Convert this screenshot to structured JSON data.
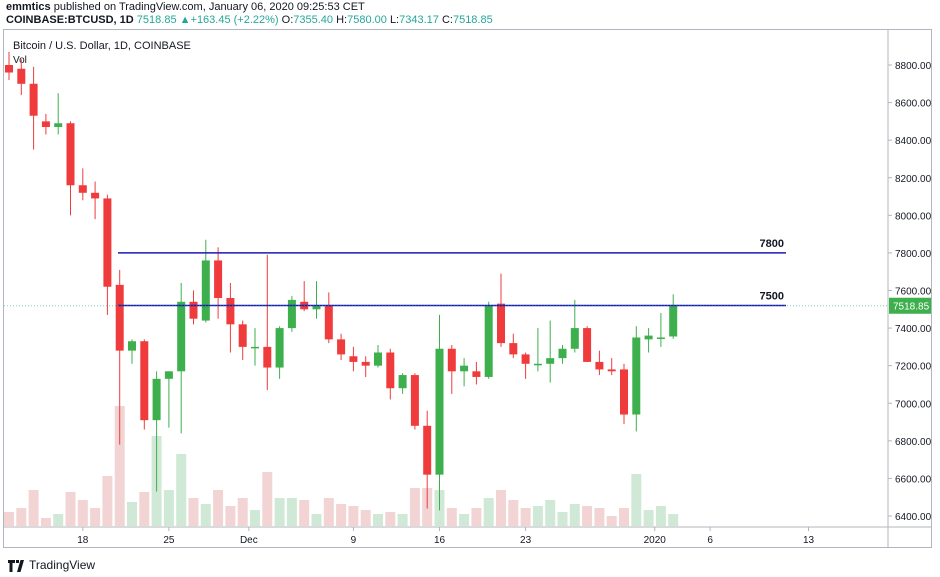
{
  "header": {
    "user": "emmtics",
    "published": "published on TradingView.com, January 06, 2020 09:25:53 CET",
    "symbol": "COINBASE:BTCUSD, 1D",
    "price": "7518.85",
    "change": "+163.45 (+2.22%)",
    "o_label": "O:",
    "o": "7355.40",
    "h_label": "H:",
    "h": "7580.00",
    "l_label": "L:",
    "l": "7343.17",
    "c_label": "C:",
    "c": "7518.85"
  },
  "footer": {
    "brand": "TradingView"
  },
  "colors": {
    "up": "#26a69a",
    "up_candle": "#3eaf4d",
    "down": "#ef3b3b",
    "line": "#1a1ab5",
    "vol_up": "#cfe9d6",
    "vol_down": "#f2d4d4"
  },
  "chart_data": {
    "type": "candlestick",
    "title": "Bitcoin / U.S. Dollar, 1D, COINBASE",
    "volume_label": "Vol",
    "x_tick_labels": [
      "18",
      "25",
      "Dec",
      "9",
      "16",
      "23",
      "2020",
      "6",
      "13"
    ],
    "y_tick_labels": [
      "8800.00",
      "8600.00",
      "8400.00",
      "8200.00",
      "8000.00",
      "7800.00",
      "7600.00",
      "7400.00",
      "7200.00",
      "7000.00",
      "6800.00",
      "6600.00",
      "6400.00"
    ],
    "ylim": [
      6300,
      8960
    ],
    "last_price_label": "7518.85",
    "levels": [
      {
        "label": "7800",
        "value": 7800
      },
      {
        "label": "7500",
        "value": 7520
      }
    ],
    "candles": [
      {
        "o": 8800,
        "h": 8870,
        "l": 8720,
        "c": 8760,
        "v": 7
      },
      {
        "o": 8780,
        "h": 8830,
        "l": 8640,
        "c": 8700,
        "v": 9
      },
      {
        "o": 8700,
        "h": 8790,
        "l": 8350,
        "c": 8530,
        "v": 18
      },
      {
        "o": 8500,
        "h": 8540,
        "l": 8430,
        "c": 8470,
        "v": 4
      },
      {
        "o": 8470,
        "h": 8650,
        "l": 8430,
        "c": 8490,
        "v": 6
      },
      {
        "o": 8490,
        "h": 8500,
        "l": 8000,
        "c": 8160,
        "v": 17
      },
      {
        "o": 8160,
        "h": 8250,
        "l": 8080,
        "c": 8120,
        "v": 13
      },
      {
        "o": 8120,
        "h": 8180,
        "l": 7980,
        "c": 8090,
        "v": 9
      },
      {
        "o": 8090,
        "h": 8110,
        "l": 7470,
        "c": 7620,
        "v": 25
      },
      {
        "o": 7630,
        "h": 7710,
        "l": 6780,
        "c": 7280,
        "v": 60
      },
      {
        "o": 7280,
        "h": 7340,
        "l": 7210,
        "c": 7330,
        "v": 12
      },
      {
        "o": 7330,
        "h": 7340,
        "l": 6860,
        "c": 6910,
        "v": 17
      },
      {
        "o": 6910,
        "h": 7170,
        "l": 6530,
        "c": 7130,
        "v": 45
      },
      {
        "o": 7130,
        "h": 7170,
        "l": 6870,
        "c": 7170,
        "v": 18
      },
      {
        "o": 7170,
        "h": 7640,
        "l": 6840,
        "c": 7540,
        "v": 36
      },
      {
        "o": 7540,
        "h": 7600,
        "l": 7420,
        "c": 7450,
        "v": 14
      },
      {
        "o": 7440,
        "h": 7870,
        "l": 7430,
        "c": 7760,
        "v": 11
      },
      {
        "o": 7760,
        "h": 7830,
        "l": 7450,
        "c": 7560,
        "v": 18
      },
      {
        "o": 7560,
        "h": 7640,
        "l": 7270,
        "c": 7420,
        "v": 10
      },
      {
        "o": 7420,
        "h": 7440,
        "l": 7230,
        "c": 7300,
        "v": 14
      },
      {
        "o": 7300,
        "h": 7400,
        "l": 7200,
        "c": 7300,
        "v": 8
      },
      {
        "o": 7300,
        "h": 7790,
        "l": 7070,
        "c": 7190,
        "v": 27
      },
      {
        "o": 7190,
        "h": 7410,
        "l": 7130,
        "c": 7400,
        "v": 14
      },
      {
        "o": 7400,
        "h": 7570,
        "l": 7380,
        "c": 7550,
        "v": 14
      },
      {
        "o": 7540,
        "h": 7650,
        "l": 7490,
        "c": 7500,
        "v": 13
      },
      {
        "o": 7500,
        "h": 7650,
        "l": 7450,
        "c": 7520,
        "v": 6
      },
      {
        "o": 7520,
        "h": 7590,
        "l": 7320,
        "c": 7340,
        "v": 14
      },
      {
        "o": 7340,
        "h": 7370,
        "l": 7230,
        "c": 7260,
        "v": 11
      },
      {
        "o": 7250,
        "h": 7300,
        "l": 7170,
        "c": 7220,
        "v": 10
      },
      {
        "o": 7220,
        "h": 7250,
        "l": 7140,
        "c": 7200,
        "v": 8
      },
      {
        "o": 7200,
        "h": 7310,
        "l": 7190,
        "c": 7270,
        "v": 6
      },
      {
        "o": 7270,
        "h": 7290,
        "l": 7020,
        "c": 7080,
        "v": 7
      },
      {
        "o": 7080,
        "h": 7160,
        "l": 7050,
        "c": 7150,
        "v": 6
      },
      {
        "o": 7150,
        "h": 7160,
        "l": 6860,
        "c": 6880,
        "v": 19
      },
      {
        "o": 6880,
        "h": 6960,
        "l": 6440,
        "c": 6620,
        "v": 19
      },
      {
        "o": 6620,
        "h": 7470,
        "l": 6430,
        "c": 7290,
        "v": 18
      },
      {
        "o": 7290,
        "h": 7310,
        "l": 7050,
        "c": 7170,
        "v": 9
      },
      {
        "o": 7170,
        "h": 7240,
        "l": 7090,
        "c": 7200,
        "v": 6
      },
      {
        "o": 7170,
        "h": 7220,
        "l": 7100,
        "c": 7140,
        "v": 9
      },
      {
        "o": 7140,
        "h": 7540,
        "l": 7130,
        "c": 7520,
        "v": 14
      },
      {
        "o": 7530,
        "h": 7690,
        "l": 7300,
        "c": 7320,
        "v": 18
      },
      {
        "o": 7320,
        "h": 7370,
        "l": 7240,
        "c": 7260,
        "v": 13
      },
      {
        "o": 7260,
        "h": 7270,
        "l": 7130,
        "c": 7210,
        "v": 9
      },
      {
        "o": 7210,
        "h": 7400,
        "l": 7170,
        "c": 7210,
        "v": 10
      },
      {
        "o": 7210,
        "h": 7440,
        "l": 7110,
        "c": 7240,
        "v": 13
      },
      {
        "o": 7240,
        "h": 7310,
        "l": 7210,
        "c": 7290,
        "v": 7
      },
      {
        "o": 7290,
        "h": 7550,
        "l": 7270,
        "c": 7400,
        "v": 11
      },
      {
        "o": 7400,
        "h": 7410,
        "l": 7220,
        "c": 7220,
        "v": 10
      },
      {
        "o": 7220,
        "h": 7280,
        "l": 7150,
        "c": 7180,
        "v": 9
      },
      {
        "o": 7180,
        "h": 7240,
        "l": 7150,
        "c": 7170,
        "v": 5
      },
      {
        "o": 7180,
        "h": 7210,
        "l": 6890,
        "c": 6940,
        "v": 9
      },
      {
        "o": 6940,
        "h": 7410,
        "l": 6850,
        "c": 7350,
        "v": 26
      },
      {
        "o": 7340,
        "h": 7400,
        "l": 7270,
        "c": 7360,
        "v": 8
      },
      {
        "o": 7350,
        "h": 7480,
        "l": 7300,
        "c": 7350,
        "v": 10
      },
      {
        "o": 7355.4,
        "h": 7580,
        "l": 7343.17,
        "c": 7518.85,
        "v": 6
      }
    ]
  }
}
